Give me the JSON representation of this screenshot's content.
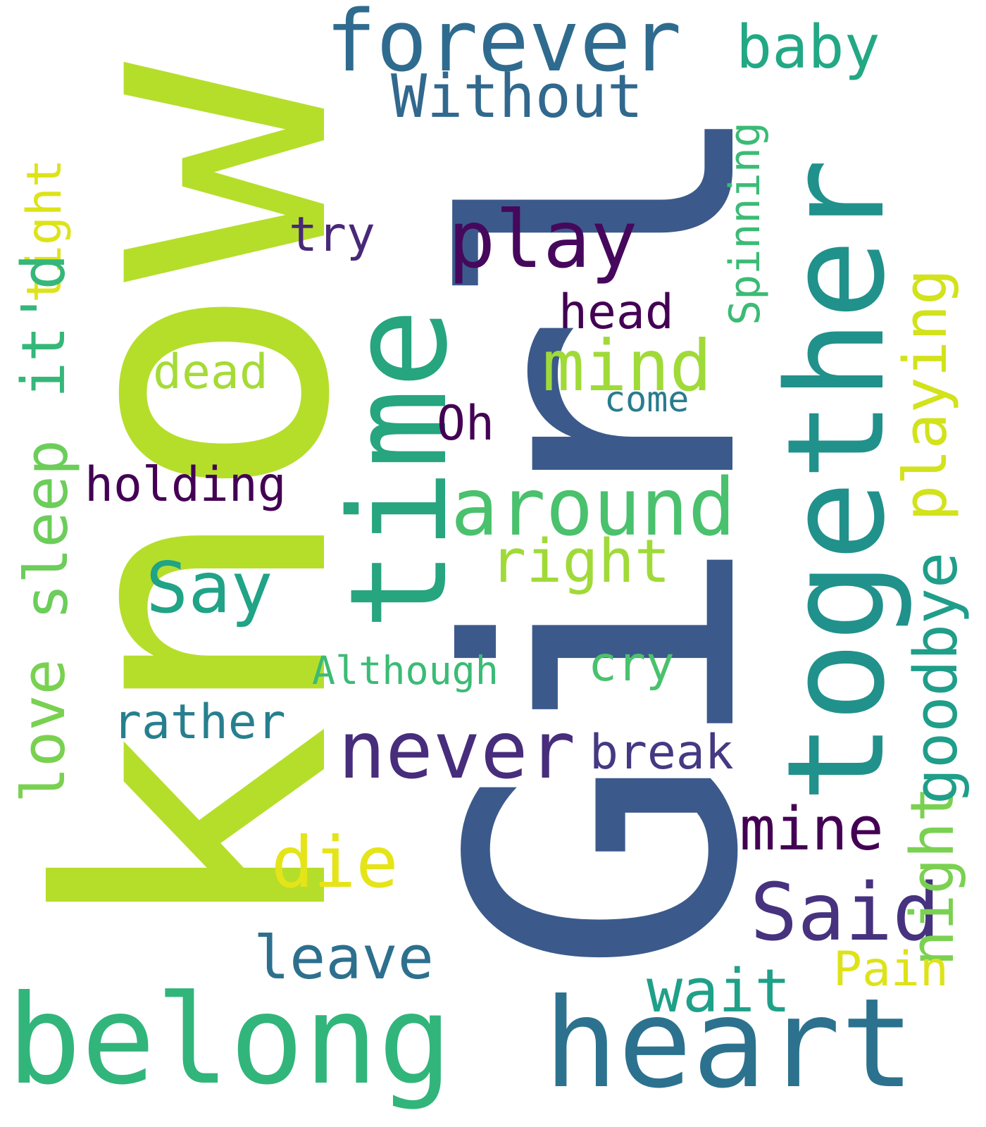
{
  "words": {
    "know": {
      "text": "know",
      "color": "#b5de2b"
    },
    "girl": {
      "text": "Girl",
      "color": "#3b5a8b"
    },
    "together": {
      "text": "together",
      "color": "#21918c"
    },
    "time": {
      "text": "time",
      "color": "#26a57f"
    },
    "forever": {
      "text": "forever",
      "color": "#2f6b8e"
    },
    "play": {
      "text": "play",
      "color": "#46085c"
    },
    "around": {
      "text": "around",
      "color": "#4ac16d"
    },
    "belong": {
      "text": "belong",
      "color": "#31b57b"
    },
    "heart": {
      "text": "heart",
      "color": "#2c728e"
    },
    "never": {
      "text": "never",
      "color": "#472d7b"
    },
    "said": {
      "text": "Said",
      "color": "#46327e"
    },
    "baby": {
      "text": "baby",
      "color": "#22a884"
    },
    "night": {
      "text": "night",
      "color": "#7ad151"
    },
    "without": {
      "text": "Without",
      "color": "#31688e"
    },
    "spinning": {
      "text": "Spinning",
      "color": "#3bbb75"
    },
    "playing": {
      "text": "playing",
      "color": "#d2e21b"
    },
    "goodbye": {
      "text": "goodbye",
      "color": "#1f9e89"
    },
    "tight": {
      "text": "tight",
      "color": "#dde318"
    },
    "itd": {
      "text": "it'd",
      "color": "#35b779"
    },
    "sleep": {
      "text": "sleep",
      "color": "#6ccd5a"
    },
    "love": {
      "text": "love",
      "color": "#7ad151"
    },
    "try": {
      "text": "try",
      "color": "#482878"
    },
    "head": {
      "text": "head",
      "color": "#440154"
    },
    "mind": {
      "text": "mind",
      "color": "#a0da39"
    },
    "dead": {
      "text": "dead",
      "color": "#a5db36"
    },
    "come": {
      "text": "come",
      "color": "#287c8e"
    },
    "oh": {
      "text": "Oh",
      "color": "#440154"
    },
    "holding": {
      "text": "holding",
      "color": "#440154"
    },
    "right": {
      "text": "right",
      "color": "#a0da39"
    },
    "say": {
      "text": "Say",
      "color": "#20a386"
    },
    "cry": {
      "text": "cry",
      "color": "#4ac16d"
    },
    "although": {
      "text": "Although",
      "color": "#3bbb75"
    },
    "rather": {
      "text": "rather",
      "color": "#277f8e"
    },
    "break": {
      "text": "break",
      "color": "#443983"
    },
    "mine": {
      "text": "mine",
      "color": "#440154"
    },
    "die": {
      "text": "die",
      "color": "#e5e419"
    },
    "leave": {
      "text": "leave",
      "color": "#2d708e"
    },
    "pain": {
      "text": "Pain",
      "color": "#dde318"
    },
    "wait": {
      "text": "wait",
      "color": "#1fa088"
    }
  }
}
